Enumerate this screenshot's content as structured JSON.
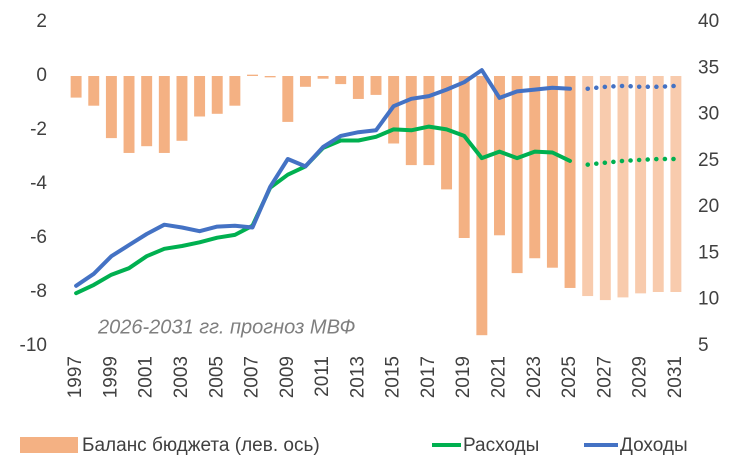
{
  "chart_data": {
    "type": "bar-line",
    "annotation": "2026-2031 гг. прогноз МВФ",
    "forecast_from": 2026,
    "x": [
      1997,
      1998,
      1999,
      2000,
      2001,
      2002,
      2003,
      2004,
      2005,
      2006,
      2007,
      2008,
      2009,
      2010,
      2011,
      2012,
      2013,
      2014,
      2015,
      2016,
      2017,
      2018,
      2019,
      2020,
      2021,
      2022,
      2023,
      2024,
      2025,
      2026,
      2027,
      2028,
      2029,
      2030,
      2031
    ],
    "xlim": [
      1996.2,
      2031.8
    ],
    "xticks": [
      1997,
      1999,
      2001,
      2003,
      2005,
      2007,
      2009,
      2011,
      2013,
      2015,
      2017,
      2019,
      2021,
      2023,
      2025,
      2027,
      2029,
      2031
    ],
    "ylim": [
      -10,
      2
    ],
    "yticks": [
      -10,
      -8,
      -6,
      -4,
      -2,
      0,
      2
    ],
    "y2lim": [
      5,
      40
    ],
    "y2ticks": [
      5,
      10,
      15,
      20,
      25,
      30,
      35,
      40
    ],
    "series": [
      {
        "name": "Баланс бюджета (лев. ось)",
        "kind": "bar",
        "color": "#f4b183",
        "forecast_color": "#f8cbad",
        "values": [
          -0.8,
          -1.1,
          -2.3,
          -2.85,
          -2.6,
          -2.85,
          -2.4,
          -1.5,
          -1.4,
          -1.1,
          0.05,
          -0.05,
          -1.7,
          -0.4,
          -0.1,
          -0.3,
          -0.85,
          -0.7,
          -2.5,
          -3.3,
          -3.3,
          -4.2,
          -6.0,
          -9.6,
          -5.9,
          -7.3,
          -6.75,
          -7.1,
          -7.85,
          -8.15,
          -8.3,
          -8.2,
          -8.05,
          -8.0,
          -8.0
        ]
      },
      {
        "name": "Расходы",
        "kind": "line",
        "axis": "y2",
        "color": "#00b050",
        "values": [
          10.7,
          11.6,
          12.7,
          13.4,
          14.7,
          15.5,
          15.8,
          16.2,
          16.7,
          17.0,
          18.0,
          22.1,
          23.5,
          24.4,
          26.4,
          27.2,
          27.2,
          27.6,
          28.4,
          28.3,
          28.7,
          28.4,
          27.7,
          25.3,
          26.0,
          25.3,
          26.0,
          25.9,
          25.0,
          24.6,
          24.8,
          25.0,
          25.1,
          25.2,
          25.2
        ]
      },
      {
        "name": "Доходы",
        "kind": "line",
        "axis": "y2",
        "color": "#4472c4",
        "values": [
          11.5,
          12.8,
          14.7,
          15.9,
          17.1,
          18.1,
          17.8,
          17.4,
          17.9,
          18.0,
          17.8,
          22.2,
          25.2,
          24.4,
          26.5,
          27.7,
          28.1,
          28.3,
          30.9,
          31.7,
          32.0,
          32.7,
          33.5,
          34.8,
          31.8,
          32.5,
          32.7,
          32.9,
          32.8,
          32.8,
          33.0,
          33.1,
          33.0,
          33.0,
          33.1
        ]
      }
    ]
  }
}
